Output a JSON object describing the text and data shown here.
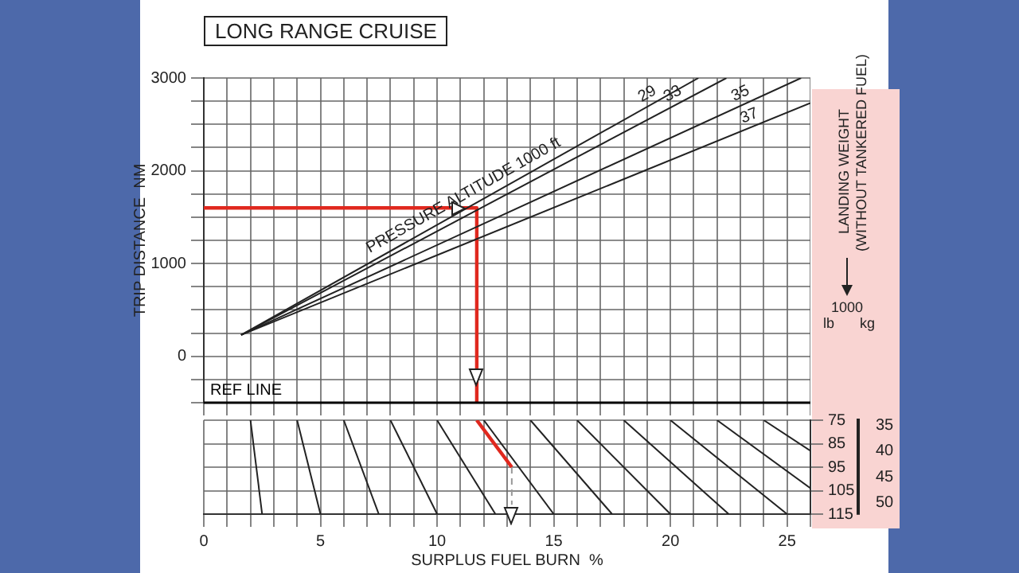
{
  "chart_data": [
    {
      "type": "line",
      "title": "LONG RANGE CRUISE",
      "ylabel": "TRIP DISTANCE  NM",
      "annotations": [
        "PRESSURE ALTITUDE 1000 ft"
      ],
      "xlim": [
        0,
        26
      ],
      "xticks": [
        0,
        {
          "value": 1,
          "label": null
        },
        {
          "value": 2,
          "label": null
        },
        {
          "value": 3,
          "label": null
        },
        {
          "value": 4,
          "label": null
        },
        5,
        {
          "value": 6,
          "label": null
        },
        {
          "value": 7,
          "label": null
        },
        {
          "value": 8,
          "label": null
        },
        {
          "value": 9,
          "label": null
        },
        10,
        {
          "value": 11,
          "label": null
        },
        {
          "value": 12,
          "label": null
        },
        {
          "value": 13,
          "label": null
        },
        {
          "value": 14,
          "label": null
        },
        15,
        {
          "value": 16,
          "label": null
        },
        {
          "value": 17,
          "label": null
        },
        {
          "value": 18,
          "label": null
        },
        {
          "value": 19,
          "label": null
        },
        20,
        {
          "value": 21,
          "label": null
        },
        {
          "value": 22,
          "label": null
        },
        {
          "value": 23,
          "label": null
        },
        {
          "value": 24,
          "label": null
        },
        25,
        {
          "value": 26,
          "label": null
        }
      ],
      "ylim": [
        -500,
        3000
      ],
      "yticks": [
        {
          "value": -500,
          "label": null
        },
        {
          "value": -250,
          "label": null
        },
        0,
        {
          "value": 250,
          "label": null
        },
        {
          "value": 500,
          "label": null
        },
        {
          "value": 750,
          "label": null
        },
        1000,
        {
          "value": 1250,
          "label": null
        },
        {
          "value": 1500,
          "label": null
        },
        {
          "value": 1750,
          "label": null
        },
        2000,
        {
          "value": 2250,
          "label": null
        },
        {
          "value": 2500,
          "label": null
        },
        {
          "value": 2750,
          "label": null
        },
        3000
      ],
      "tick_labels": "y",
      "grid": true,
      "marker": "none",
      "line_style": "solid",
      "ref_lines": [
        {
          "axis": "y",
          "value": -500,
          "label": "REF LINE",
          "color": "#000000"
        }
      ],
      "series": [
        {
          "name": "29",
          "color": "#222222",
          "x": [
            1.6,
            21.2
          ],
          "values": [
            230,
            3000
          ]
        },
        {
          "name": "33",
          "color": "#222222",
          "x": [
            1.6,
            22.4
          ],
          "values": [
            230,
            3000
          ]
        },
        {
          "name": "35",
          "color": "#222222",
          "x": [
            1.6,
            25.6
          ],
          "values": [
            230,
            3000
          ]
        },
        {
          "name": "37",
          "color": "#222222",
          "x": [
            1.6,
            26
          ],
          "values": [
            230,
            2730
          ]
        },
        {
          "color": "#e0281e",
          "x": [
            0,
            11.7,
            11.7
          ],
          "values": [
            1600,
            1600,
            -500
          ]
        }
      ]
    },
    {
      "type": "line",
      "xlabel": "SURPLUS FUEL BURN  %",
      "ylabel": "lb",
      "y2label": "kg",
      "annotations": [
        "LANDING WEIGHT",
        "(WITHOUT TANKERED FUEL)",
        "1000"
      ],
      "xlim": [
        0,
        26
      ],
      "xticks": [
        0,
        {
          "value": 1,
          "label": null
        },
        {
          "value": 2,
          "label": null
        },
        {
          "value": 3,
          "label": null
        },
        {
          "value": 4,
          "label": null
        },
        5,
        {
          "value": 6,
          "label": null
        },
        {
          "value": 7,
          "label": null
        },
        {
          "value": 8,
          "label": null
        },
        {
          "value": 9,
          "label": null
        },
        10,
        {
          "value": 11,
          "label": null
        },
        {
          "value": 12,
          "label": null
        },
        {
          "value": 13,
          "label": null
        },
        {
          "value": 14,
          "label": null
        },
        15,
        {
          "value": 16,
          "label": null
        },
        {
          "value": 17,
          "label": null
        },
        {
          "value": 18,
          "label": null
        },
        {
          "value": 19,
          "label": null
        },
        20,
        {
          "value": 21,
          "label": null
        },
        {
          "value": 22,
          "label": null
        },
        {
          "value": 23,
          "label": null
        },
        {
          "value": 24,
          "label": null
        },
        25,
        {
          "value": 26,
          "label": null
        }
      ],
      "ylim": [
        115,
        75
      ],
      "yticks": [
        75,
        85,
        95,
        105,
        115
      ],
      "y2lim": [
        52.2,
        34.0
      ],
      "y2ticks": [
        35,
        40,
        45,
        50
      ],
      "grid": true,
      "marker": "none",
      "line_style": "solid",
      "series": [
        {
          "color": "#222222",
          "x": [
            2,
            2.5
          ],
          "values": [
            75,
            115
          ]
        },
        {
          "color": "#222222",
          "x": [
            4,
            5
          ],
          "values": [
            75,
            115
          ]
        },
        {
          "color": "#222222",
          "x": [
            6,
            7.5
          ],
          "values": [
            75,
            115
          ]
        },
        {
          "color": "#222222",
          "x": [
            8,
            10
          ],
          "values": [
            75,
            115
          ]
        },
        {
          "color": "#222222",
          "x": [
            10,
            12.5
          ],
          "values": [
            75,
            115
          ]
        },
        {
          "color": "#222222",
          "x": [
            12,
            15
          ],
          "values": [
            75,
            115
          ]
        },
        {
          "color": "#222222",
          "x": [
            14,
            17.5
          ],
          "values": [
            75,
            115
          ]
        },
        {
          "color": "#222222",
          "x": [
            16,
            20
          ],
          "values": [
            75,
            115
          ]
        },
        {
          "color": "#222222",
          "x": [
            18,
            22.5
          ],
          "values": [
            75,
            115
          ]
        },
        {
          "color": "#222222",
          "x": [
            20,
            25
          ],
          "values": [
            75,
            115
          ]
        },
        {
          "color": "#222222",
          "x": [
            22,
            26
          ],
          "values": [
            75,
            104
          ]
        },
        {
          "color": "#222222",
          "x": [
            24,
            26
          ],
          "values": [
            75,
            88
          ]
        },
        {
          "color": "#e0281e",
          "x": [
            11.7,
            13.2
          ],
          "values": [
            75,
            95
          ]
        },
        {
          "color": "#999999",
          "line_style": "dashed",
          "x": [
            13.2,
            13.2
          ],
          "values": [
            95,
            111
          ]
        }
      ]
    }
  ]
}
